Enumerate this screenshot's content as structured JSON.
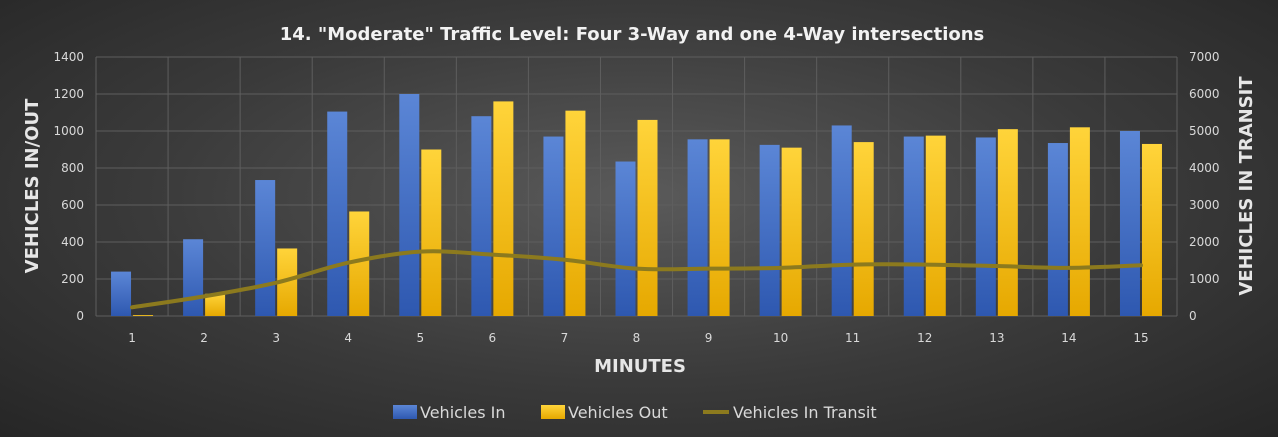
{
  "chart_data": {
    "type": "bar",
    "title": "14. \"Moderate\" Traffic Level: Four 3-Way and one 4-Way intersections",
    "xlabel": "MINUTES",
    "ylabel": "VEHICLES IN/OUT",
    "y2label": "VEHICLES IN TRANSIT",
    "categories": [
      "1",
      "2",
      "3",
      "4",
      "5",
      "6",
      "7",
      "8",
      "9",
      "10",
      "11",
      "12",
      "13",
      "14",
      "15"
    ],
    "ylim": [
      0,
      1400
    ],
    "y2lim": [
      0,
      7000
    ],
    "yticks": [
      "0",
      "200",
      "400",
      "600",
      "800",
      "1000",
      "1200",
      "1400"
    ],
    "y2ticks": [
      "0",
      "1000",
      "2000",
      "3000",
      "4000",
      "5000",
      "6000",
      "7000"
    ],
    "grid": true,
    "legend_position": "bottom",
    "series": [
      {
        "name": "Vehicles In",
        "type": "bar",
        "axis": "left",
        "color": "#4472c4",
        "values": [
          240,
          415,
          735,
          1105,
          1200,
          1080,
          970,
          835,
          955,
          925,
          1030,
          970,
          965,
          935,
          1000
        ]
      },
      {
        "name": "Vehicles Out",
        "type": "bar",
        "axis": "left",
        "color": "#ffc000",
        "values": [
          5,
          120,
          365,
          565,
          900,
          1160,
          1110,
          1060,
          955,
          910,
          940,
          975,
          1010,
          1020,
          930
        ]
      },
      {
        "name": "Vehicles In Transit",
        "type": "line",
        "axis": "right",
        "color": "#8c7a1e",
        "values": [
          235,
          530,
          900,
          1440,
          1740,
          1660,
          1520,
          1280,
          1280,
          1300,
          1390,
          1390,
          1350,
          1300,
          1370
        ]
      }
    ]
  }
}
